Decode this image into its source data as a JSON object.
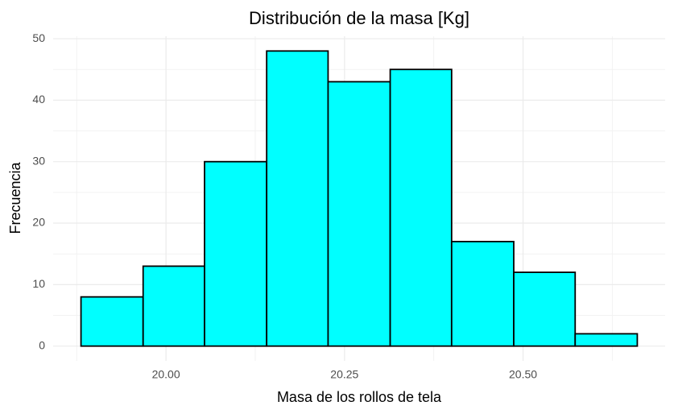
{
  "chart_data": {
    "type": "histogram",
    "title": "Distribución de la masa [Kg]",
    "xlabel": "Masa de los rollos de tela",
    "ylabel": "Frecuencia",
    "bins": [
      19.881,
      19.968,
      20.054,
      20.141,
      20.227,
      20.314,
      20.4,
      20.487,
      20.573,
      20.66
    ],
    "values": [
      8,
      13,
      30,
      48,
      43,
      45,
      17,
      12,
      2
    ],
    "color": "#00ffff",
    "edgecolor": "#000000",
    "xlim": [
      19.842,
      20.699
    ],
    "ylim": [
      -2.4,
      50.4
    ],
    "xticks": [
      {
        "value": 20,
        "label": "20.00"
      },
      {
        "value": 20.25,
        "label": "20.25"
      },
      {
        "value": 20.5,
        "label": "20.50"
      }
    ],
    "yticks": [
      0,
      10,
      20,
      30,
      40,
      50
    ],
    "grid": true
  }
}
